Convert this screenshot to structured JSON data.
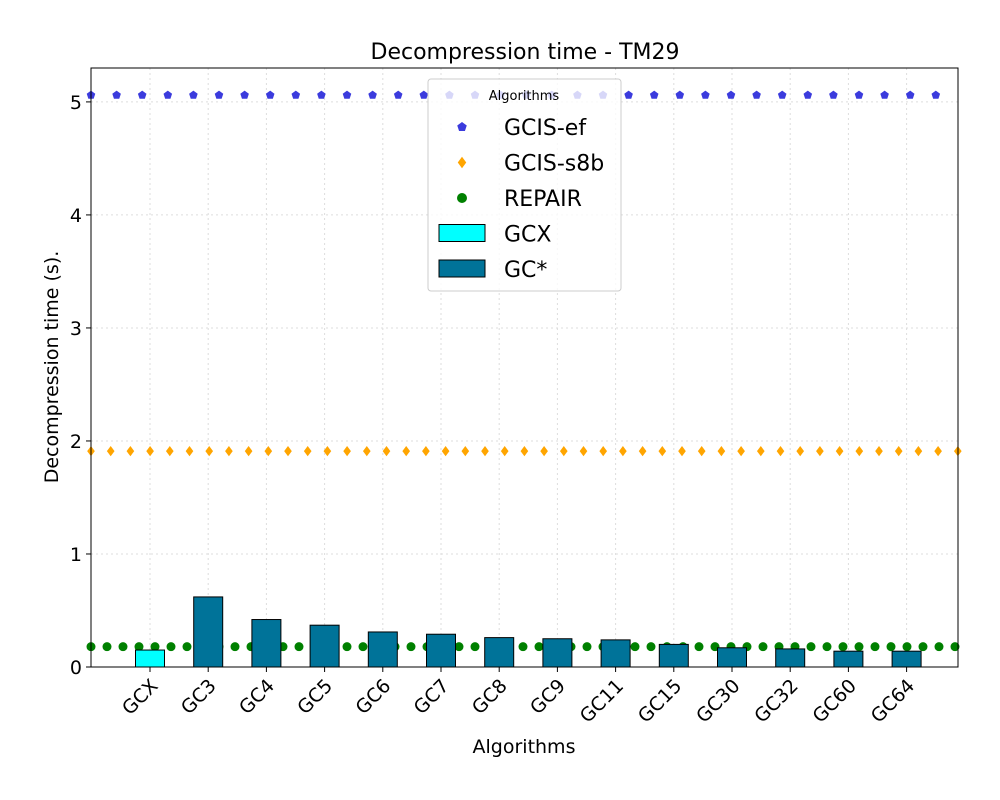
{
  "chart_data": {
    "type": "bar",
    "title": "Decompression time -  TM29",
    "xlabel": "Algorithms",
    "ylabel": "Decompression time (s).",
    "ylim": [
      0,
      5.3
    ],
    "yticks": [
      "0",
      "1",
      "2",
      "3",
      "4",
      "5"
    ],
    "grid": true,
    "categories": [
      "GCX",
      "GC3",
      "GC4",
      "GC5",
      "GC6",
      "GC7",
      "GC8",
      "GC9",
      "GC11",
      "GC15",
      "GC30",
      "GC32",
      "GC60",
      "GC64"
    ],
    "series": [
      {
        "name": "GCX",
        "kind": "bar",
        "color": "#00ffff",
        "values": [
          0.15,
          null,
          null,
          null,
          null,
          null,
          null,
          null,
          null,
          null,
          null,
          null,
          null,
          null
        ]
      },
      {
        "name": "GC*",
        "kind": "bar",
        "color": "#007399",
        "values": [
          null,
          0.62,
          0.42,
          0.37,
          0.31,
          0.29,
          0.26,
          0.25,
          0.24,
          0.2,
          0.17,
          0.16,
          0.14,
          0.14
        ]
      },
      {
        "name": "GCIS-ef",
        "kind": "reference-line",
        "marker": "pentagon",
        "color": "#3b3bdd",
        "value": 5.06
      },
      {
        "name": "GCIS-s8b",
        "kind": "reference-line",
        "marker": "diamond",
        "color": "#ffa500",
        "value": 1.91
      },
      {
        "name": "REPAIR",
        "kind": "reference-line",
        "marker": "circle",
        "color": "#008000",
        "value": 0.18
      }
    ],
    "legend": {
      "title": "Algorithms",
      "placement": "top-center",
      "entries": [
        "GCIS-ef",
        "GCIS-s8b",
        "REPAIR",
        "GCX",
        "GC*"
      ]
    }
  }
}
